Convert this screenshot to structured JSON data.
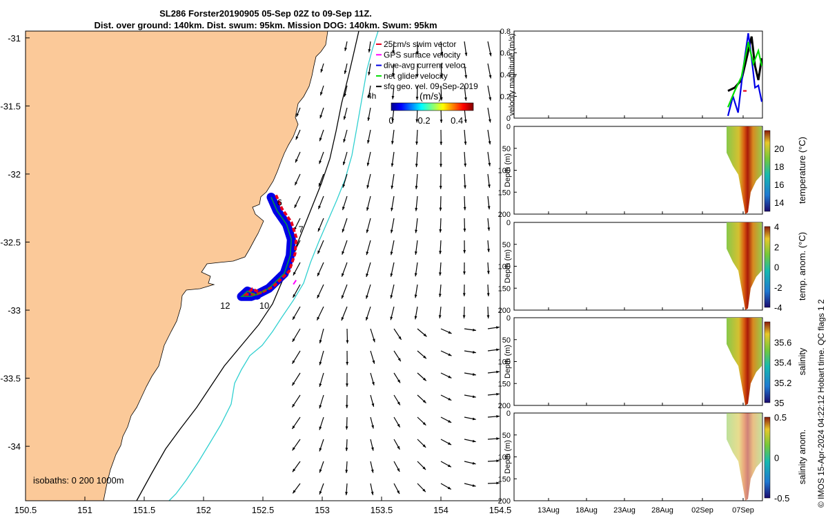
{
  "header": {
    "title_line1": "SL286 Forster20190905 05-Sep 02Z to 09-Sep 11Z.",
    "title_line2": "Dist. over ground: 140km. Dist. swum: 95km. Mission DOG: 140km. Swum: 95km"
  },
  "credit": "© IMOS 15-Apr-2024 04:22:12 Hobart time. QC flags 1 2",
  "colors": {
    "land": "#fbc999",
    "swim_vector": "#e6001f",
    "gps_velocity": "#ff00ff",
    "dive_avg_current": "#0000e6",
    "net_glider_velocity": "#00dd00",
    "isobath_200": "#30d0d0",
    "isobath_1000": "#000000"
  },
  "chart_data": [
    {
      "type": "map",
      "xlim": [
        150.5,
        154.5
      ],
      "ylim": [
        -34.4,
        -30.95
      ],
      "x_ticks": [
        "150.5",
        "151",
        "151.5",
        "152",
        "152.5",
        "153",
        "153.5",
        "154",
        "154.5"
      ],
      "y_ticks": [
        "-31",
        "-31.5",
        "-32",
        "-32.5",
        "-33",
        "-33.5",
        "-34"
      ],
      "legend": [
        {
          "label": "25cm/s swim vector",
          "color": "#e6001f"
        },
        {
          "label": "GPS surface velocity",
          "color": "#ff00ff"
        },
        {
          "label": "dive-avg current veloc.",
          "color": "#0000e6"
        },
        {
          "label": "net glider velocity",
          "color": "#00dd00"
        },
        {
          "label": "sfc geo. vel. 09-Sep-2019",
          "color": "#000000"
        }
      ],
      "colorbar": {
        "label": "(m/s)",
        "ticks": [
          "0",
          "0.2",
          "0.4"
        ],
        "range": [
          0,
          0.5
        ]
      },
      "isobaths_label": "isobaths: 0   200  1000m",
      "scale_label": "4h",
      "day_labels": [
        {
          "text": "6",
          "lon": 152.62,
          "lat": -32.23
        },
        {
          "text": "7",
          "lon": 152.8,
          "lat": -32.43
        },
        {
          "text": "10",
          "lon": 152.47,
          "lat": -32.99
        },
        {
          "text": "12",
          "lon": 152.14,
          "lat": -32.99
        }
      ],
      "track": [
        [
          152.57,
          -32.17
        ],
        [
          152.62,
          -32.27
        ],
        [
          152.7,
          -32.37
        ],
        [
          152.74,
          -32.48
        ],
        [
          152.73,
          -32.6
        ],
        [
          152.68,
          -32.73
        ],
        [
          152.55,
          -32.84
        ],
        [
          152.46,
          -32.88
        ],
        [
          152.4,
          -32.9
        ],
        [
          152.32,
          -32.9
        ],
        [
          152.37,
          -32.86
        ],
        [
          152.45,
          -32.89
        ]
      ]
    },
    {
      "type": "line",
      "ylabel": "velocity magnitude (m/s)",
      "ylim": [
        0,
        0.8
      ],
      "y_ticks": [
        "0",
        "0.2",
        "0.4",
        "0.6",
        "0.8"
      ],
      "x_ticks": [
        "13Aug",
        "18Aug",
        "23Aug",
        "28Aug",
        "02Sep",
        "07Sep"
      ],
      "series": [
        {
          "color": "#000000",
          "x": [
            0,
            0.2,
            0.4,
            0.55,
            0.7,
            0.8,
            0.9,
            1
          ],
          "values": [
            0.25,
            0.28,
            0.35,
            0.55,
            0.75,
            0.48,
            0.35,
            0.55
          ]
        },
        {
          "color": "#0000e6",
          "x": [
            0,
            0.15,
            0.3,
            0.45,
            0.6,
            0.7,
            0.8,
            0.9,
            1
          ],
          "values": [
            0.02,
            0.2,
            0.05,
            0.45,
            0.78,
            0.55,
            0.28,
            0.3,
            0.15
          ]
        },
        {
          "color": "#00dd00",
          "x": [
            0,
            0.2,
            0.4,
            0.6,
            0.75,
            0.9,
            1
          ],
          "values": [
            0.1,
            0.25,
            0.38,
            0.7,
            0.5,
            0.62,
            0.48
          ]
        },
        {
          "color": "#e6001f",
          "x": [
            0.45,
            0.55
          ],
          "values": [
            0.25,
            0.25
          ]
        }
      ]
    },
    {
      "type": "heatmap",
      "label": "temperature (°C)",
      "ylabel": "Depth (m)",
      "ticks": [
        "14",
        "16",
        "18",
        "20"
      ],
      "range": [
        13,
        22
      ],
      "y_ticks": [
        "0",
        "50",
        "100",
        "150",
        "200"
      ]
    },
    {
      "type": "heatmap",
      "label": "temp. anom. (°C)",
      "ylabel": "Depth (m)",
      "ticks": [
        "-4",
        "-2",
        "0",
        "2",
        "4"
      ],
      "range": [
        -4,
        4
      ],
      "y_ticks": [
        "0",
        "50",
        "100",
        "150",
        "200"
      ]
    },
    {
      "type": "heatmap",
      "label": "salinity",
      "ylabel": "Depth (m)",
      "ticks": [
        "35",
        "35.2",
        "35.4",
        "35.6"
      ],
      "range": [
        35,
        35.8
      ],
      "y_ticks": [
        "0",
        "50",
        "100",
        "150",
        "200"
      ]
    },
    {
      "type": "heatmap",
      "label": "salinity anom.",
      "ylabel": "Depth (m)",
      "ticks": [
        "-0.5",
        "0",
        "0.5"
      ],
      "range": [
        -0.5,
        0.5
      ],
      "y_ticks": [
        "0",
        "50",
        "100",
        "150",
        "200"
      ]
    }
  ]
}
